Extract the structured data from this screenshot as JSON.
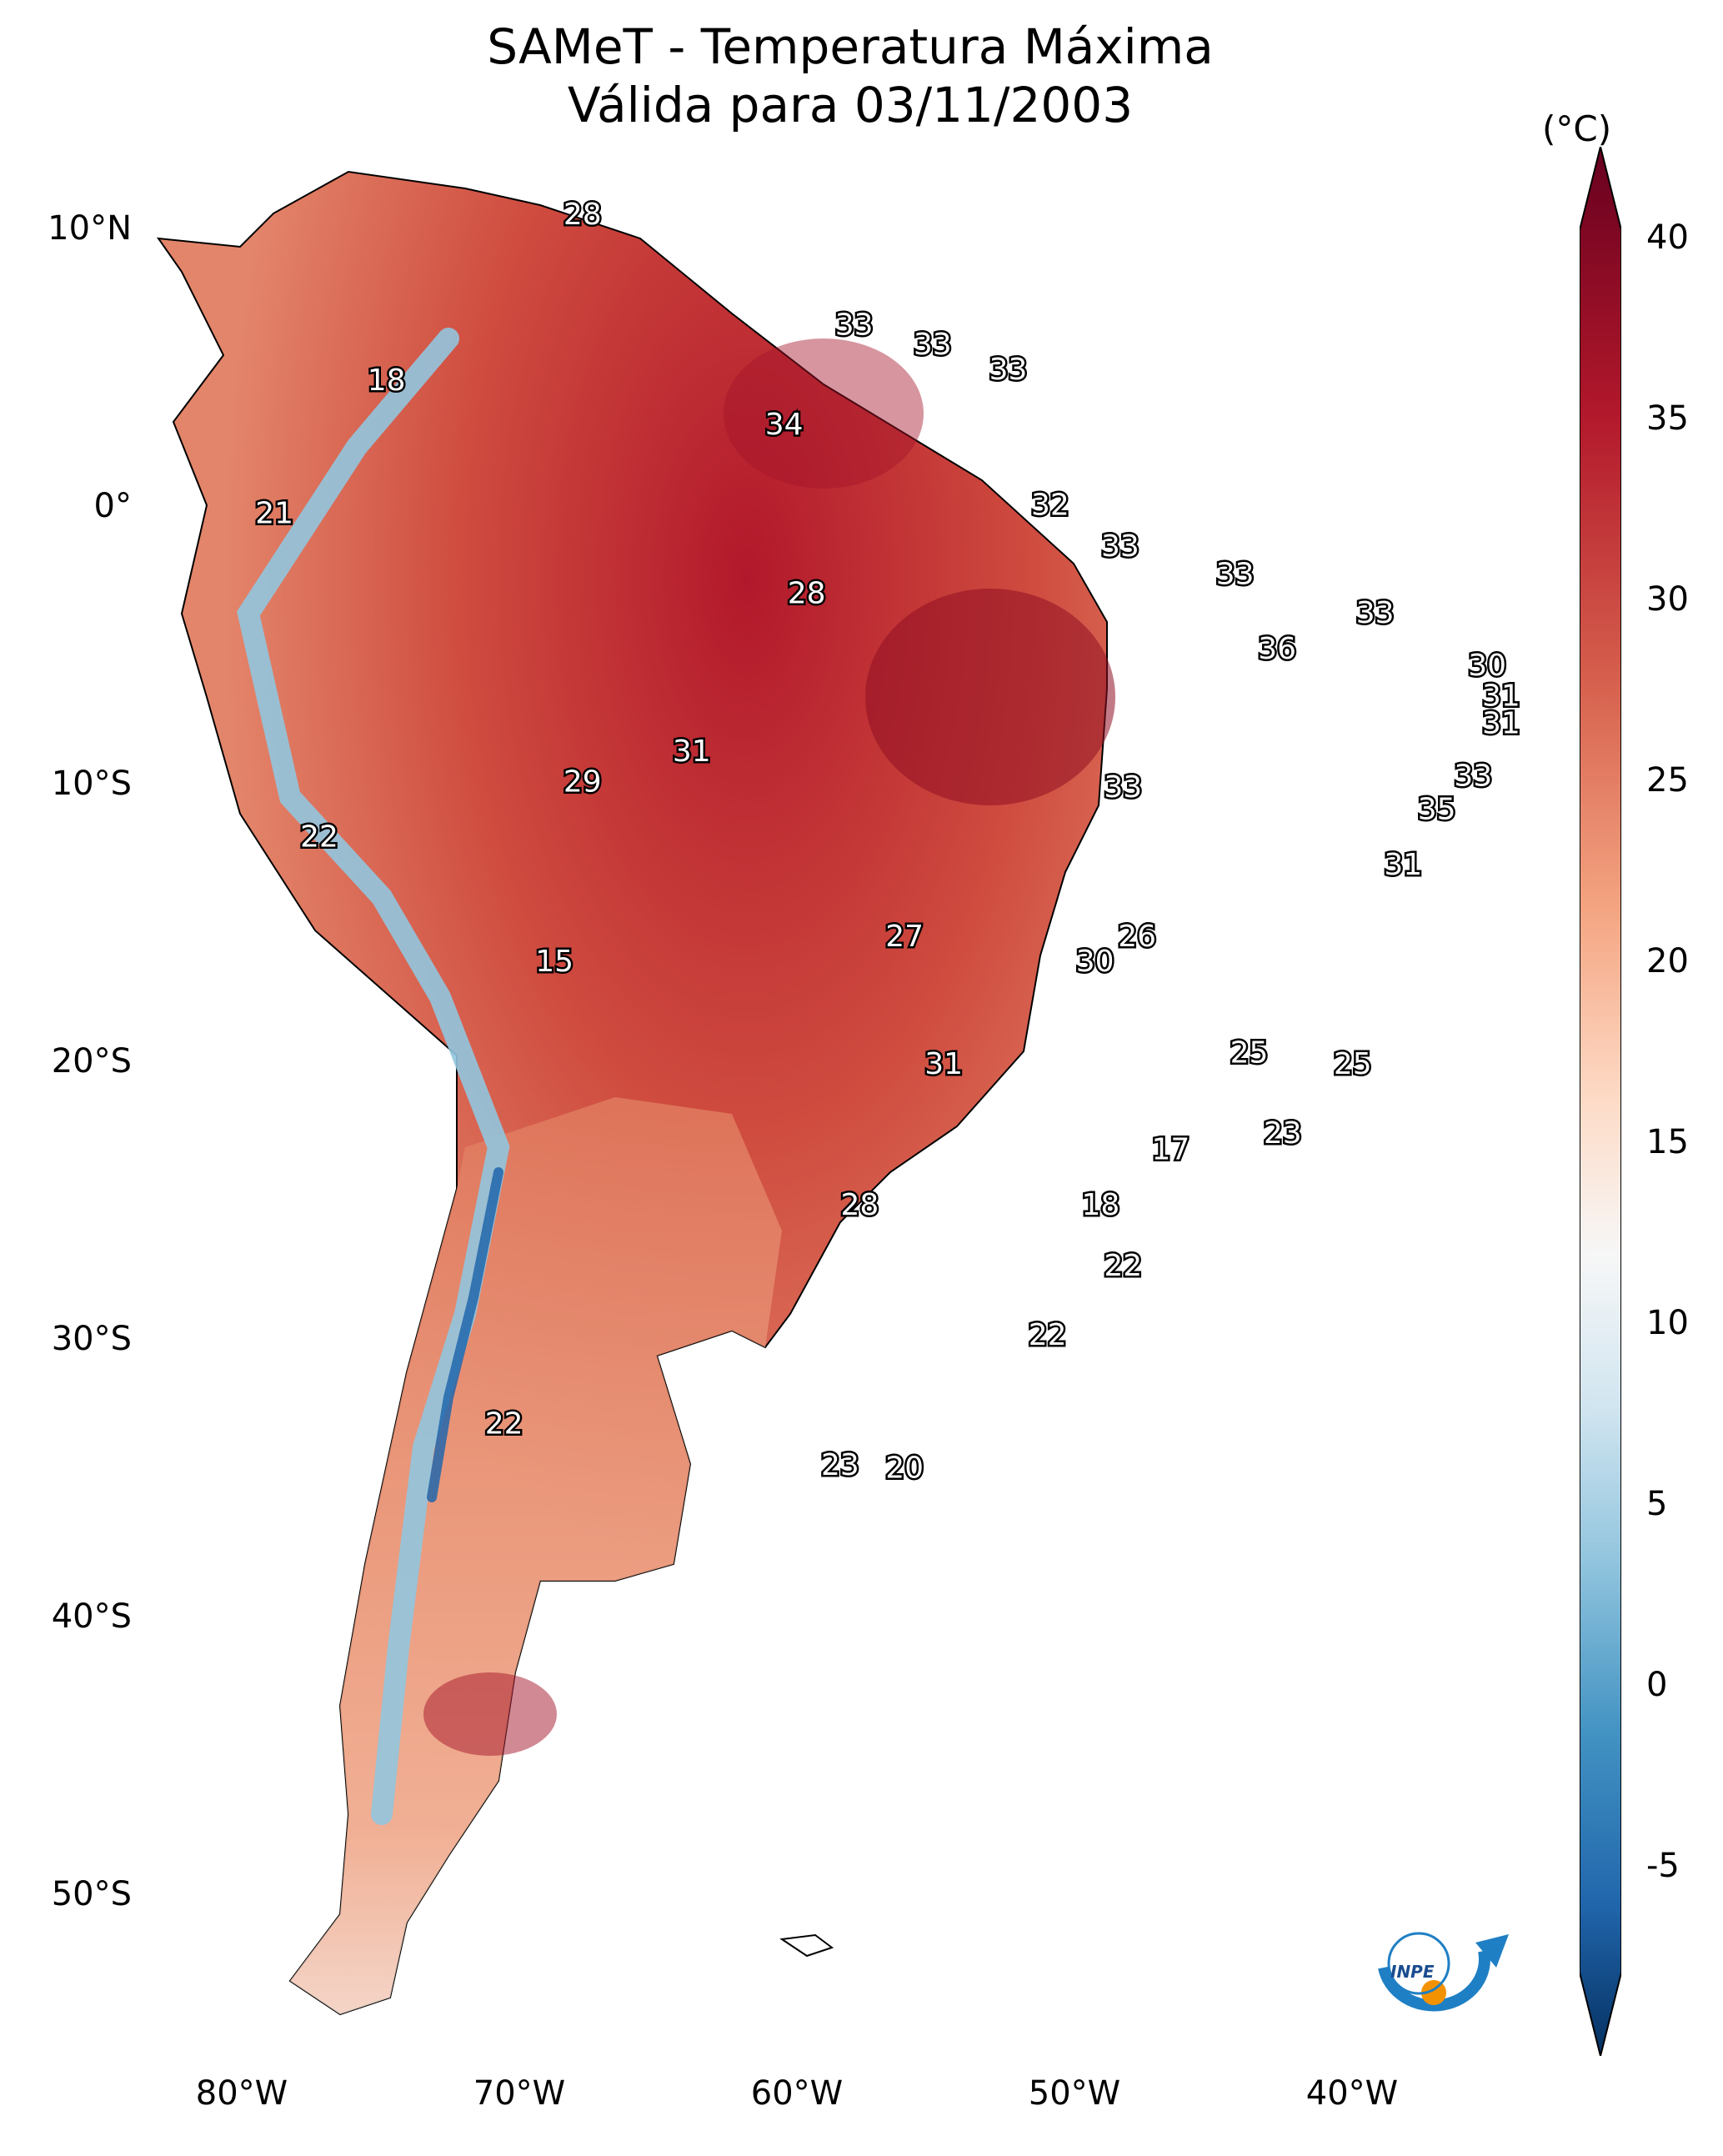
{
  "title": {
    "line1": "SAMeT - Temperatura Máxima",
    "line2": "Válida para 03/11/2003"
  },
  "colorbar": {
    "unit": "(°C)",
    "ticks": [
      "40",
      "35",
      "30",
      "25",
      "20",
      "15",
      "10",
      "5",
      "0",
      "-5"
    ],
    "colors": [
      "#67001f",
      "#b2182b",
      "#d6604d",
      "#f4a582",
      "#fddbc7",
      "#f7f7f7",
      "#d1e5f0",
      "#92c5de",
      "#4393c3",
      "#2166ac",
      "#053061"
    ]
  },
  "axes": {
    "lat_labels": [
      "10°N",
      "0°",
      "10°S",
      "20°S",
      "30°S",
      "40°S",
      "50°S"
    ],
    "lon_labels": [
      "80°W",
      "70°W",
      "60°W",
      "50°W",
      "40°W"
    ]
  },
  "logo": {
    "text": "INPE"
  },
  "point_labels": [
    {
      "value": "28",
      "lon": -67.5,
      "lat": 10.5
    },
    {
      "value": "18",
      "lon": -74.5,
      "lat": 4.5
    },
    {
      "value": "33",
      "lon": -57.8,
      "lat": 6.5
    },
    {
      "value": "33",
      "lon": -55.0,
      "lat": 5.8
    },
    {
      "value": "33",
      "lon": -52.3,
      "lat": 4.9
    },
    {
      "value": "34",
      "lon": -60.3,
      "lat": 2.9
    },
    {
      "value": "21",
      "lon": -78.5,
      "lat": -0.3
    },
    {
      "value": "32",
      "lon": -50.8,
      "lat": 0.0
    },
    {
      "value": "33",
      "lon": -48.3,
      "lat": -1.5
    },
    {
      "value": "33",
      "lon": -44.2,
      "lat": -2.5
    },
    {
      "value": "28",
      "lon": -59.5,
      "lat": -3.2
    },
    {
      "value": "33",
      "lon": -39.2,
      "lat": -3.9
    },
    {
      "value": "36",
      "lon": -42.7,
      "lat": -5.2
    },
    {
      "value": "30",
      "lon": -35.2,
      "lat": -5.8
    },
    {
      "value": "31",
      "lon": -34.7,
      "lat": -6.9
    },
    {
      "value": "31",
      "lon": -34.7,
      "lat": -7.9
    },
    {
      "value": "31",
      "lon": -63.6,
      "lat": -8.9
    },
    {
      "value": "29",
      "lon": -67.5,
      "lat": -10.0
    },
    {
      "value": "33",
      "lon": -48.2,
      "lat": -10.2
    },
    {
      "value": "33",
      "lon": -35.7,
      "lat": -9.8
    },
    {
      "value": "35",
      "lon": -37.0,
      "lat": -11.0
    },
    {
      "value": "22",
      "lon": -76.9,
      "lat": -12.0
    },
    {
      "value": "31",
      "lon": -38.2,
      "lat": -13.0
    },
    {
      "value": "27",
      "lon": -56.0,
      "lat": -15.6
    },
    {
      "value": "26",
      "lon": -47.7,
      "lat": -15.6
    },
    {
      "value": "15",
      "lon": -68.5,
      "lat": -16.5
    },
    {
      "value": "30",
      "lon": -49.2,
      "lat": -16.5
    },
    {
      "value": "25",
      "lon": -43.7,
      "lat": -19.8
    },
    {
      "value": "25",
      "lon": -40.0,
      "lat": -20.2
    },
    {
      "value": "31",
      "lon": -54.6,
      "lat": -20.2
    },
    {
      "value": "23",
      "lon": -42.5,
      "lat": -22.7
    },
    {
      "value": "17",
      "lon": -46.5,
      "lat": -23.3
    },
    {
      "value": "18",
      "lon": -49.0,
      "lat": -25.3
    },
    {
      "value": "28",
      "lon": -57.6,
      "lat": -25.3
    },
    {
      "value": "22",
      "lon": -48.2,
      "lat": -27.5
    },
    {
      "value": "22",
      "lon": -50.9,
      "lat": -30.0
    },
    {
      "value": "22",
      "lon": -70.3,
      "lat": -33.2
    },
    {
      "value": "23",
      "lon": -58.3,
      "lat": -34.7
    },
    {
      "value": "20",
      "lon": -56.0,
      "lat": -34.8
    }
  ]
}
